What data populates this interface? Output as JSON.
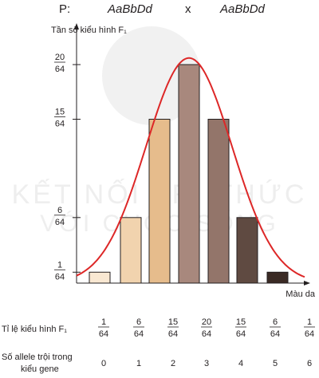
{
  "cross": {
    "label": "P:",
    "parent1": "AaBbDd",
    "symbol": "x",
    "parent2": "AaBbDd"
  },
  "watermark": {
    "line1": "KẾT NỐI TRI THỨC",
    "line2": "VỚI CUỘC SỐNG"
  },
  "chart_data": {
    "type": "bar",
    "ylabel": "Tần số kiểu hình F₁",
    "xlabel": "Màu da",
    "denominator": 64,
    "y_ticks": [
      {
        "num": "1",
        "den": "64",
        "value": 1
      },
      {
        "num": "6",
        "den": "64",
        "value": 6
      },
      {
        "num": "15",
        "den": "64",
        "value": 15
      },
      {
        "num": "20",
        "den": "64",
        "value": 20
      }
    ],
    "values": [
      1,
      6,
      15,
      20,
      15,
      6,
      1
    ],
    "colors": [
      "#f9e8d2",
      "#f1d3ae",
      "#e6bc8c",
      "#a8887d",
      "#93756a",
      "#5f4a41",
      "#3a2a24"
    ],
    "curve_color": "#dd2727",
    "grid": false,
    "table": {
      "row1_label": "Tỉ lệ kiểu hình F₁",
      "row2_label_line1": "Số allele trội trong",
      "row2_label_line2": "kiểu gene",
      "ratios": [
        {
          "num": "1",
          "den": "64"
        },
        {
          "num": "6",
          "den": "64"
        },
        {
          "num": "15",
          "den": "64"
        },
        {
          "num": "20",
          "den": "64"
        },
        {
          "num": "15",
          "den": "64"
        },
        {
          "num": "6",
          "den": "64"
        },
        {
          "num": "1",
          "den": "64"
        }
      ],
      "allele_counts": [
        "0",
        "1",
        "2",
        "3",
        "4",
        "5",
        "6"
      ]
    }
  }
}
